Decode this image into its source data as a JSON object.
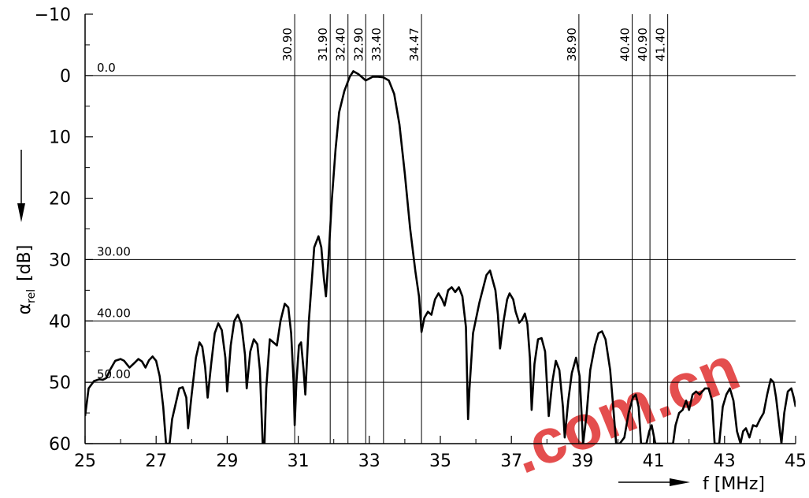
{
  "chart_data": {
    "type": "line",
    "title": "",
    "xlabel": "f [MHz]",
    "ylabel_symbol": "α",
    "ylabel_subscript": "rel",
    "ylabel_unit": "[dB]",
    "xlim": [
      25,
      45
    ],
    "ylim": [
      -10,
      60
    ],
    "y_inverted": true,
    "grid": false,
    "xticks": [
      "25",
      "27",
      "29",
      "31",
      "33",
      "35",
      "37",
      "39",
      "41",
      "43",
      "45"
    ],
    "xtick_values": [
      25,
      27,
      29,
      31,
      33,
      35,
      37,
      39,
      41,
      43,
      45
    ],
    "yticks": [
      "−10",
      "0",
      "10",
      "20",
      "30",
      "40",
      "50",
      "60"
    ],
    "ytick_values": [
      -10,
      0,
      10,
      20,
      30,
      40,
      50,
      60
    ],
    "reference_lines": [
      {
        "value": 0,
        "label": "0.0"
      },
      {
        "value": 30,
        "label": "30.00"
      },
      {
        "value": 40,
        "label": "40.00"
      },
      {
        "value": 50,
        "label": "50.00"
      }
    ],
    "marker_frequencies": [
      {
        "value": 30.9,
        "label": "30.90"
      },
      {
        "value": 31.9,
        "label": "31.90"
      },
      {
        "value": 32.4,
        "label": "32.40"
      },
      {
        "value": 32.9,
        "label": "32.90"
      },
      {
        "value": 33.4,
        "label": "33.40"
      },
      {
        "value": 34.47,
        "label": "34.47"
      },
      {
        "value": 38.9,
        "label": "38.90"
      },
      {
        "value": 40.4,
        "label": "40.40"
      },
      {
        "value": 40.9,
        "label": "40.90"
      },
      {
        "value": 41.4,
        "label": "41.40"
      }
    ],
    "series": [
      {
        "values": [
          [
            25.0,
            55.5
          ],
          [
            25.1,
            51
          ],
          [
            25.25,
            49.8
          ],
          [
            25.4,
            49.5
          ],
          [
            25.5,
            49.6
          ],
          [
            25.6,
            49.3
          ],
          [
            25.7,
            48
          ],
          [
            25.85,
            46.5
          ],
          [
            26.0,
            46.2
          ],
          [
            26.1,
            46.5
          ],
          [
            26.25,
            47.6
          ],
          [
            26.4,
            46.8
          ],
          [
            26.5,
            46.2
          ],
          [
            26.6,
            46.6
          ],
          [
            26.7,
            47.6
          ],
          [
            26.8,
            46.4
          ],
          [
            26.9,
            45.8
          ],
          [
            27.0,
            46.5
          ],
          [
            27.1,
            49
          ],
          [
            27.2,
            54
          ],
          [
            27.28,
            60
          ],
          [
            27.38,
            60
          ],
          [
            27.45,
            56
          ],
          [
            27.55,
            53.5
          ],
          [
            27.65,
            51
          ],
          [
            27.75,
            50.8
          ],
          [
            27.85,
            52.5
          ],
          [
            27.9,
            57.5
          ],
          [
            28.0,
            52
          ],
          [
            28.12,
            46
          ],
          [
            28.22,
            43.5
          ],
          [
            28.3,
            44.2
          ],
          [
            28.38,
            47.5
          ],
          [
            28.45,
            52.5
          ],
          [
            28.55,
            47
          ],
          [
            28.65,
            42
          ],
          [
            28.75,
            40.4
          ],
          [
            28.85,
            41.5
          ],
          [
            28.95,
            46
          ],
          [
            29.0,
            51.5
          ],
          [
            29.1,
            44
          ],
          [
            29.2,
            40
          ],
          [
            29.3,
            39
          ],
          [
            29.4,
            40.5
          ],
          [
            29.5,
            45.5
          ],
          [
            29.55,
            51
          ],
          [
            29.65,
            45
          ],
          [
            29.75,
            43
          ],
          [
            29.85,
            43.8
          ],
          [
            29.92,
            48
          ],
          [
            30.0,
            60
          ],
          [
            30.05,
            60
          ],
          [
            30.1,
            51
          ],
          [
            30.2,
            43
          ],
          [
            30.3,
            43.5
          ],
          [
            30.4,
            44
          ],
          [
            30.5,
            40
          ],
          [
            30.62,
            37.2
          ],
          [
            30.72,
            37.8
          ],
          [
            30.8,
            42
          ],
          [
            30.87,
            50
          ],
          [
            30.9,
            57
          ],
          [
            30.95,
            50
          ],
          [
            31.02,
            44
          ],
          [
            31.08,
            43.5
          ],
          [
            31.15,
            48
          ],
          [
            31.2,
            52
          ],
          [
            31.3,
            40
          ],
          [
            31.45,
            28
          ],
          [
            31.57,
            26.2
          ],
          [
            31.65,
            28
          ],
          [
            31.72,
            33
          ],
          [
            31.78,
            36
          ],
          [
            31.85,
            30
          ],
          [
            31.95,
            20
          ],
          [
            32.05,
            12
          ],
          [
            32.15,
            6
          ],
          [
            32.3,
            2.5
          ],
          [
            32.45,
            0.2
          ],
          [
            32.55,
            -0.7
          ],
          [
            32.7,
            -0.2
          ],
          [
            32.9,
            0.8
          ],
          [
            33.1,
            0.2
          ],
          [
            33.25,
            0.2
          ],
          [
            33.4,
            0.3
          ],
          [
            33.55,
            0.8
          ],
          [
            33.7,
            3
          ],
          [
            33.85,
            8
          ],
          [
            34.0,
            16
          ],
          [
            34.15,
            25
          ],
          [
            34.3,
            32
          ],
          [
            34.4,
            36
          ],
          [
            34.47,
            41.8
          ],
          [
            34.55,
            39.5
          ],
          [
            34.65,
            38.5
          ],
          [
            34.75,
            39
          ],
          [
            34.85,
            36.5
          ],
          [
            34.95,
            35.5
          ],
          [
            35.05,
            36.5
          ],
          [
            35.12,
            37.5
          ],
          [
            35.22,
            35
          ],
          [
            35.32,
            34.5
          ],
          [
            35.42,
            35.3
          ],
          [
            35.52,
            34.5
          ],
          [
            35.62,
            36
          ],
          [
            35.72,
            41
          ],
          [
            35.78,
            56
          ],
          [
            35.82,
            51
          ],
          [
            35.92,
            42
          ],
          [
            36.1,
            37
          ],
          [
            36.3,
            32.5
          ],
          [
            36.4,
            31.8
          ],
          [
            36.55,
            35
          ],
          [
            36.62,
            39
          ],
          [
            36.68,
            44.5
          ],
          [
            36.78,
            40
          ],
          [
            36.88,
            36.5
          ],
          [
            36.95,
            35.5
          ],
          [
            37.05,
            36.5
          ],
          [
            37.12,
            38.5
          ],
          [
            37.22,
            40.3
          ],
          [
            37.3,
            39.8
          ],
          [
            37.38,
            38.8
          ],
          [
            37.45,
            40.5
          ],
          [
            37.52,
            46
          ],
          [
            37.57,
            54.5
          ],
          [
            37.65,
            47
          ],
          [
            37.75,
            43
          ],
          [
            37.85,
            42.8
          ],
          [
            37.95,
            45
          ],
          [
            38.05,
            55.5
          ],
          [
            38.15,
            50
          ],
          [
            38.25,
            46.5
          ],
          [
            38.35,
            48
          ],
          [
            38.45,
            54
          ],
          [
            38.5,
            59
          ],
          [
            38.6,
            53
          ],
          [
            38.7,
            48.5
          ],
          [
            38.82,
            46
          ],
          [
            38.92,
            49
          ],
          [
            39.02,
            60
          ],
          [
            39.12,
            55
          ],
          [
            39.22,
            48
          ],
          [
            39.35,
            44
          ],
          [
            39.45,
            42
          ],
          [
            39.55,
            41.7
          ],
          [
            39.65,
            43
          ],
          [
            39.78,
            48
          ],
          [
            39.88,
            55
          ],
          [
            39.95,
            60
          ],
          [
            40.05,
            60
          ],
          [
            40.18,
            59
          ],
          [
            40.3,
            55
          ],
          [
            40.42,
            52.5
          ],
          [
            40.5,
            52
          ],
          [
            40.58,
            54
          ],
          [
            40.65,
            60
          ],
          [
            40.8,
            60
          ],
          [
            40.88,
            58
          ],
          [
            40.95,
            57
          ],
          [
            41.05,
            60
          ],
          [
            41.55,
            60
          ],
          [
            41.62,
            57
          ],
          [
            41.72,
            55
          ],
          [
            41.82,
            54.5
          ],
          [
            41.92,
            53
          ],
          [
            42.0,
            54.5
          ],
          [
            42.1,
            52
          ],
          [
            42.2,
            51.5
          ],
          [
            42.3,
            52
          ],
          [
            42.45,
            51
          ],
          [
            42.55,
            51
          ],
          [
            42.65,
            53
          ],
          [
            42.72,
            60
          ],
          [
            42.85,
            60
          ],
          [
            42.95,
            54
          ],
          [
            43.05,
            52
          ],
          [
            43.15,
            51
          ],
          [
            43.25,
            53
          ],
          [
            43.35,
            58
          ],
          [
            43.45,
            60
          ],
          [
            43.52,
            58
          ],
          [
            43.6,
            57.5
          ],
          [
            43.7,
            59
          ],
          [
            43.8,
            57
          ],
          [
            43.9,
            57.2
          ],
          [
            44.0,
            56
          ],
          [
            44.1,
            55
          ],
          [
            44.2,
            52
          ],
          [
            44.3,
            49.5
          ],
          [
            44.38,
            50
          ],
          [
            44.45,
            52.5
          ],
          [
            44.52,
            56
          ],
          [
            44.6,
            60
          ],
          [
            44.68,
            55
          ],
          [
            44.78,
            51.5
          ],
          [
            44.88,
            51
          ],
          [
            44.95,
            52.5
          ],
          [
            45.0,
            54
          ]
        ]
      }
    ],
    "colors": {
      "line": "#000000",
      "grid": "#000000",
      "watermark": "#e03030"
    }
  },
  "watermark": {
    "text": ".com.cn"
  }
}
